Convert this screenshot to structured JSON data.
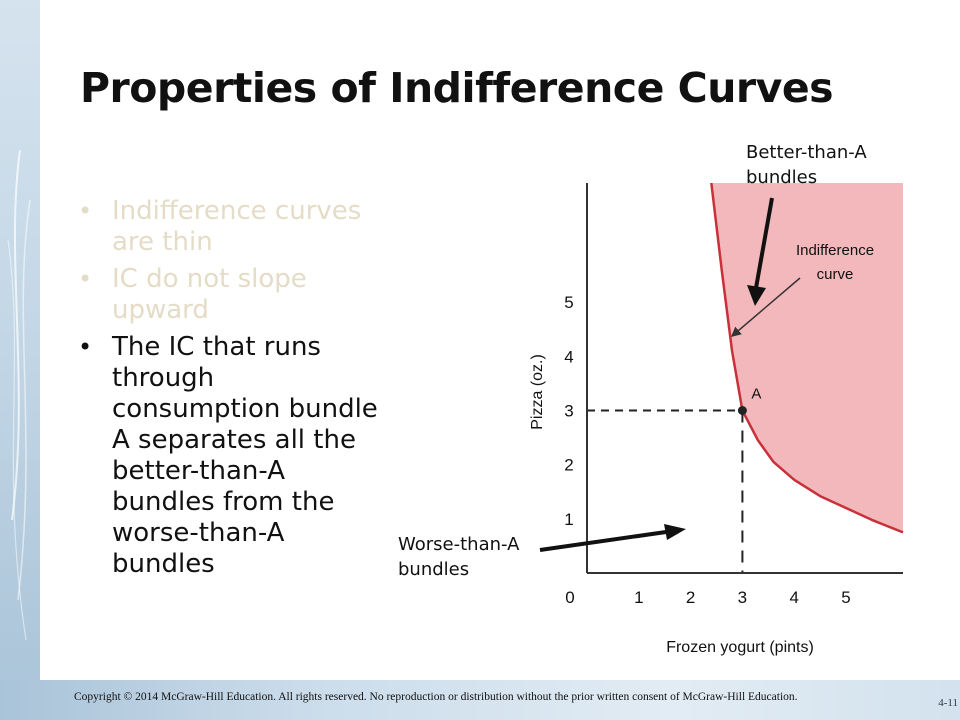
{
  "slide": {
    "title": "Properties of Indifference Curves",
    "bullets": [
      {
        "text": "Indifference curves are thin",
        "state": "dim"
      },
      {
        "text": "IC do not slope upward",
        "state": "dim"
      },
      {
        "text": "The IC that runs through consumption bundle A separates all the better-than-A bundles from the worse-than-A bundles",
        "state": "active"
      }
    ],
    "notes": {
      "better_line1": "Better-than-A",
      "better_line2": "bundles",
      "worse_line1": "Worse-than-A",
      "worse_line2": "bundles"
    },
    "copyright": "Copyright © 2014 McGraw-Hill Education. All rights reserved. No reproduction or distribution without the prior written consent of McGraw-Hill Education.",
    "slide_number": "4-11"
  },
  "colors": {
    "better_region": "#f3b8bc",
    "curve": "#c8303a",
    "axis": "#333333",
    "text": "#111111",
    "dim_text": "#e4dcc6"
  },
  "chart_data": {
    "type": "line",
    "xlabel": "Frozen yogurt (pints)",
    "ylabel": "Pizza (oz.)",
    "x_ticks": [
      0,
      1,
      2,
      3,
      4,
      5
    ],
    "y_ticks": [
      1,
      2,
      3,
      4,
      5
    ],
    "xlim": [
      0,
      6.1
    ],
    "ylim": [
      0,
      7.2
    ],
    "curve_label_line1": "Indifference",
    "curve_label_line2": "curve",
    "curve": {
      "x": [
        2.4,
        2.6,
        2.8,
        3.0,
        3.3,
        3.6,
        4.0,
        4.5,
        5.0,
        5.5,
        6.1
      ],
      "y": [
        7.2,
        5.6,
        4.1,
        3.0,
        2.45,
        2.05,
        1.72,
        1.42,
        1.2,
        0.98,
        0.75
      ]
    },
    "point": {
      "label": "A",
      "x": 3,
      "y": 3
    },
    "shaded_region": "better-than-A"
  }
}
